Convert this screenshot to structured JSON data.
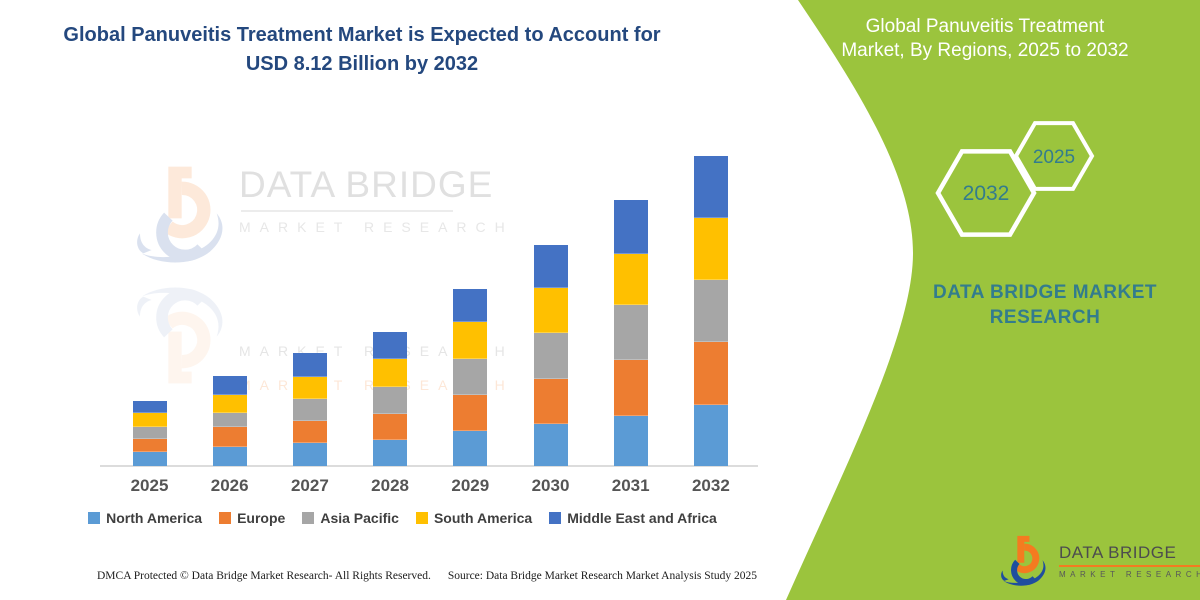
{
  "title": {
    "line1": "Global Panuveitis Treatment Market is Expected to Account for",
    "line2": "USD 8.12 Billion by 2032"
  },
  "chart_data": {
    "type": "bar",
    "stacked": true,
    "title": "Global Panuveitis Treatment Market is Expected to Account for USD 8.12 Billion by 2032",
    "unit": "USD Billion",
    "categories": [
      "2025",
      "2026",
      "2027",
      "2028",
      "2029",
      "2030",
      "2031",
      "2032"
    ],
    "series": [
      {
        "name": "North America",
        "color": "#5B9BD5",
        "values": [
          0.37,
          0.51,
          0.61,
          0.67,
          0.93,
          1.09,
          1.32,
          1.6
        ]
      },
      {
        "name": "Europe",
        "color": "#ED7D31",
        "values": [
          0.35,
          0.5,
          0.57,
          0.7,
          0.92,
          1.2,
          1.46,
          1.66
        ]
      },
      {
        "name": "Asia Pacific",
        "color": "#A6A6A6",
        "values": [
          0.3,
          0.37,
          0.58,
          0.71,
          0.96,
          1.2,
          1.44,
          1.61
        ]
      },
      {
        "name": "South America",
        "color": "#FFC000",
        "values": [
          0.37,
          0.47,
          0.58,
          0.73,
          0.96,
          1.18,
          1.33,
          1.63
        ]
      },
      {
        "name": "Middle East and Africa",
        "color": "#4472C4",
        "values": [
          0.32,
          0.51,
          0.61,
          0.71,
          0.86,
          1.12,
          1.42,
          1.62
        ]
      }
    ],
    "totals": [
      1.71,
      2.36,
      2.95,
      3.52,
      4.63,
      5.79,
      6.97,
      8.12
    ],
    "ylim": [
      0,
      8.5
    ],
    "gridlines": false,
    "legend_position": "bottom",
    "annotation": "USD 8.12 Billion by 2032"
  },
  "side_panel": {
    "heading_line1": "Global Panuveitis Treatment",
    "heading_line2": "Market, By Regions, 2025 to 2032",
    "hexagon_back_label": "2032",
    "hexagon_front_label": "2025",
    "brand_line1": "DATA BRIDGE MARKET",
    "brand_line2": "RESEARCH",
    "background_color": "#9BC43D",
    "teal_color": "#337C8D"
  },
  "watermark": {
    "brand": "DATA BRIDGE",
    "sub": "MARKET RESEARCH"
  },
  "logo": {
    "brand": "DATA BRIDGE",
    "sub": "MARKET RESEARCH"
  },
  "footer": {
    "left": "DMCA Protected © Data Bridge Market Research-  All Rights Reserved.",
    "right": "Source: Data Bridge Market Research  Market Analysis Study 2025"
  }
}
